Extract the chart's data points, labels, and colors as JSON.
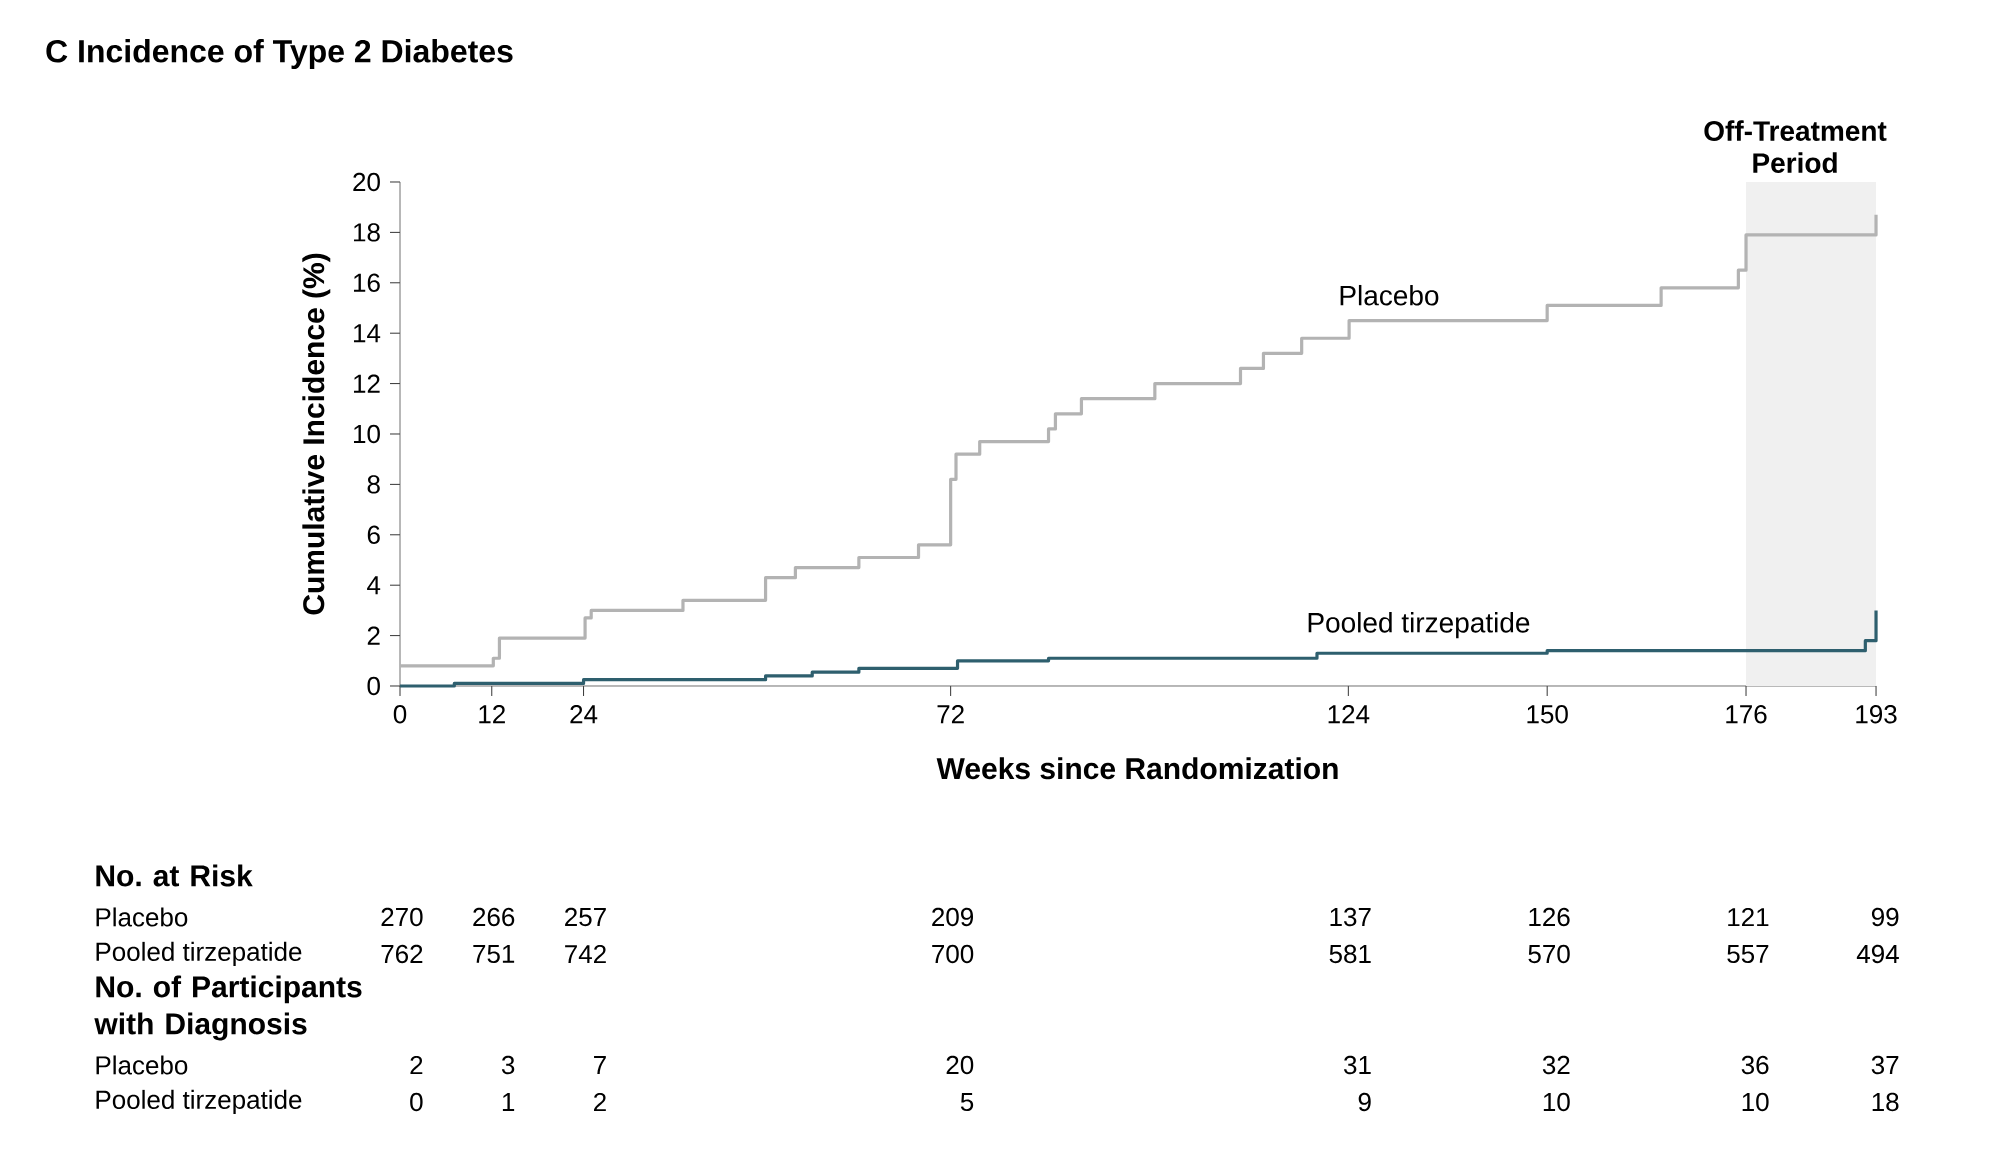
{
  "chart_data": {
    "type": "step",
    "title": "C Incidence of Type 2 Diabetes",
    "xlabel": "Weeks since Randomization",
    "ylabel": "Cumulative Incidence (%)",
    "xlim": [
      0,
      193
    ],
    "ylim": [
      0,
      20
    ],
    "xticks": [
      0,
      12,
      24,
      72,
      124,
      150,
      176,
      193
    ],
    "yticks": [
      0,
      2,
      4,
      6,
      8,
      10,
      12,
      14,
      16,
      18,
      20
    ],
    "grid": false,
    "bands": [
      {
        "axis": "x",
        "from": 176,
        "to": 193,
        "label": "Off-Treatment Period",
        "color": "#f0f0f0"
      }
    ],
    "series": [
      {
        "name": "Placebo",
        "color": "#b3b3b3",
        "x": [
          0,
          12.2,
          13,
          24.2,
          25,
          37,
          47.8,
          51.7,
          60,
          67.8,
          72,
          72.7,
          75.8,
          84.8,
          85.7,
          89.1,
          98.7,
          109.9,
          112.9,
          117.9,
          124.1,
          150,
          164.9,
          175,
          176,
          193
        ],
        "values": [
          0.8,
          1.1,
          1.9,
          2.7,
          3.0,
          3.4,
          4.3,
          4.7,
          5.1,
          5.6,
          8.2,
          9.2,
          9.7,
          10.2,
          10.8,
          11.4,
          12.0,
          12.6,
          13.2,
          13.8,
          14.5,
          15.1,
          15.8,
          16.5,
          17.9,
          18.7
        ]
      },
      {
        "name": "Pooled tirzepatide",
        "color": "#2e5f6e",
        "x": [
          0,
          7.1,
          24,
          47.8,
          53.9,
          60,
          72.9,
          84.8,
          119.9,
          150,
          191.6,
          193
        ],
        "values": [
          0,
          0.1,
          0.25,
          0.4,
          0.55,
          0.7,
          1.0,
          1.1,
          1.3,
          1.4,
          1.8,
          3.0
        ]
      }
    ],
    "annotations": [
      "No. at Risk",
      "Placebo",
      "270",
      "266",
      "257",
      "209",
      "137",
      "126",
      "121",
      "99",
      "Pooled tirzepatide",
      "762",
      "751",
      "742",
      "700",
      "581",
      "570",
      "557",
      "494",
      "No. of Participants with Diagnosis",
      "Placebo",
      "2",
      "3",
      "7",
      "20",
      "31",
      "32",
      "36",
      "37",
      "Pooled tirzepatide",
      "0",
      "1",
      "2",
      "5",
      "9",
      "10",
      "10",
      "18"
    ]
  }
}
